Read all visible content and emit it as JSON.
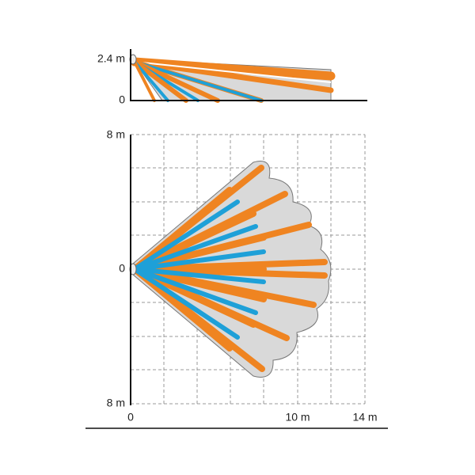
{
  "side_view": {
    "y_labels": [
      "2.4 m",
      "0"
    ]
  },
  "plan_view": {
    "y_labels": [
      "8 m",
      "0",
      "8 m"
    ],
    "x_labels": [
      "0",
      "10 m",
      "14 m"
    ]
  }
}
